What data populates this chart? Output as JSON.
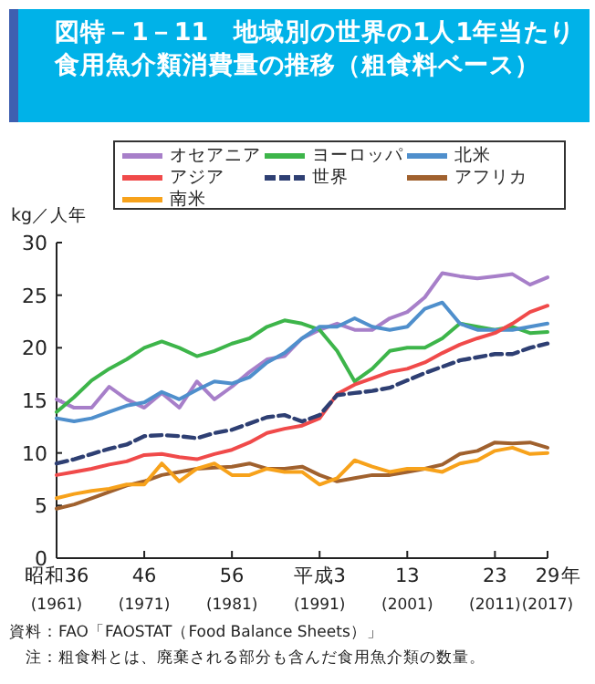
{
  "chart_data": {
    "type": "line",
    "title": "図特－1－11　地域別の世界の1人1年当たり食用魚介類消費量の推移（粗食料ベース）",
    "ylabel": "kg／人年",
    "xlabel": "年",
    "categories": [
      "昭和36\n(1961)",
      null,
      null,
      null,
      null,
      "46\n(1971)",
      null,
      null,
      null,
      null,
      "56\n(1981)",
      null,
      null,
      null,
      null,
      "平成3\n(1991)",
      null,
      null,
      null,
      null,
      "13\n(2001)",
      null,
      null,
      null,
      null,
      "23\n(2011)",
      null,
      null,
      "29\n(2017)"
    ],
    "series": [
      {
        "name": "オセアニア",
        "color": "#a77fc9",
        "values": [
          15.1,
          14.3,
          14.3,
          16.3,
          15.1,
          14.3,
          15.7,
          14.3,
          16.8,
          15.1,
          16.3,
          17.7,
          18.9,
          19.2,
          20.9,
          21.7,
          22.3,
          21.7,
          21.7,
          22.8,
          23.4,
          24.8,
          27.1,
          26.8,
          26.6,
          26.8,
          27.0,
          26.0,
          26.7
        ]
      },
      {
        "name": "ヨーロッパ",
        "color": "#3db54a",
        "values": [
          13.9,
          15.3,
          16.9,
          18.0,
          18.9,
          20.0,
          20.6,
          20.0,
          19.2,
          19.7,
          20.4,
          20.9,
          22.0,
          22.6,
          22.3,
          21.7,
          19.7,
          16.8,
          18.0,
          19.7,
          20.0,
          20.0,
          20.9,
          22.3,
          22.0,
          21.7,
          22.0,
          21.4,
          21.5
        ]
      },
      {
        "name": "北米",
        "color": "#4f8fcc",
        "values": [
          13.3,
          13.0,
          13.3,
          13.9,
          14.5,
          14.8,
          15.8,
          15.1,
          16.0,
          16.8,
          16.6,
          17.2,
          18.6,
          19.5,
          20.9,
          22.0,
          22.0,
          22.8,
          22.0,
          21.7,
          22.0,
          23.7,
          24.3,
          22.3,
          21.7,
          21.7,
          21.7,
          22.0,
          22.3
        ]
      },
      {
        "name": "アジア",
        "color": "#f04a4a",
        "values": [
          7.9,
          8.2,
          8.5,
          8.9,
          9.2,
          9.8,
          9.9,
          9.6,
          9.4,
          9.9,
          10.3,
          11.0,
          11.9,
          12.3,
          12.6,
          13.3,
          15.6,
          16.5,
          17.1,
          17.7,
          18.0,
          18.6,
          19.5,
          20.3,
          20.9,
          21.4,
          22.3,
          23.4,
          24.0
        ]
      },
      {
        "name": "世界",
        "color": "#2e3f73",
        "line_style": "dashed",
        "values": [
          9.0,
          9.4,
          9.9,
          10.4,
          10.8,
          11.6,
          11.7,
          11.6,
          11.4,
          11.9,
          12.2,
          12.8,
          13.4,
          13.6,
          13.0,
          13.6,
          15.5,
          15.7,
          15.9,
          16.2,
          16.9,
          17.6,
          18.2,
          18.8,
          19.1,
          19.4,
          19.4,
          20.0,
          20.4
        ]
      },
      {
        "name": "アフリカ",
        "color": "#a0612e",
        "values": [
          4.7,
          5.1,
          5.7,
          6.3,
          6.9,
          7.3,
          7.9,
          8.2,
          8.5,
          8.6,
          8.7,
          9.0,
          8.5,
          8.5,
          8.7,
          7.9,
          7.3,
          7.6,
          7.9,
          7.9,
          8.2,
          8.5,
          8.9,
          9.9,
          10.2,
          11.0,
          10.9,
          11.0,
          10.5
        ]
      },
      {
        "name": "南米",
        "color": "#f7a21b",
        "values": [
          5.7,
          6.1,
          6.4,
          6.6,
          7.0,
          7.0,
          9.0,
          7.3,
          8.5,
          9.0,
          7.9,
          7.9,
          8.5,
          8.2,
          8.2,
          7.0,
          7.6,
          9.3,
          8.7,
          8.2,
          8.5,
          8.5,
          8.2,
          9.0,
          9.3,
          10.2,
          10.5,
          9.9,
          10.0
        ]
      }
    ],
    "ylim": [
      0,
      30
    ],
    "yticks": [
      0,
      5,
      10,
      15,
      20,
      25,
      30
    ],
    "grid": false,
    "legend": "top",
    "line_style": "solid",
    "annotations": [
      "資料：FAO「FAOSTAT（Food Balance Sheets）」",
      "注：粗食料とは、廃棄される部分も含んだ食用魚介類の数量。"
    ]
  }
}
